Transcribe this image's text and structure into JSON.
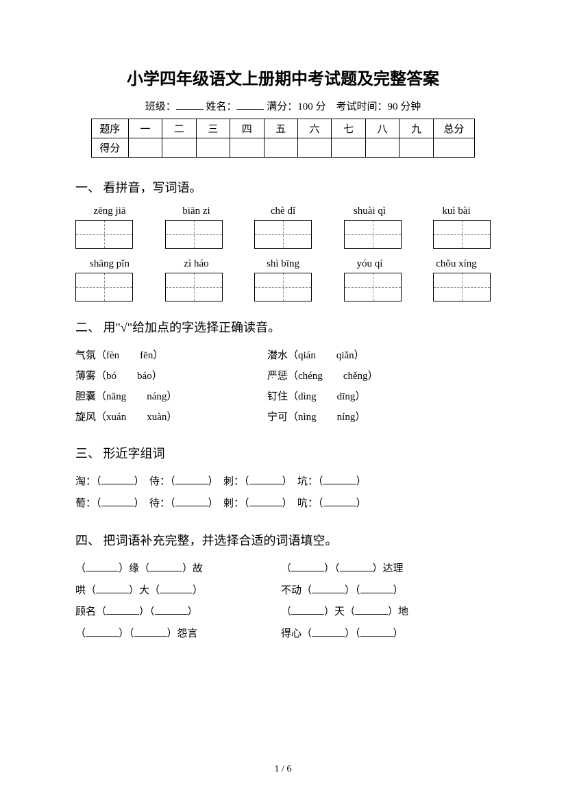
{
  "title": "小学四年级语文上册期中考试题及完整答案",
  "meta": {
    "class_label": "班级：",
    "name_label": "姓名：",
    "full_score_label": "满分：",
    "full_score_value": "100 分",
    "time_label": "考试时间：",
    "time_value": "90 分钟"
  },
  "score_table": {
    "row1_label": "题序",
    "row2_label": "得分",
    "cols": [
      "一",
      "二",
      "三",
      "四",
      "五",
      "六",
      "七",
      "八",
      "九"
    ],
    "total": "总分"
  },
  "section1": {
    "heading": "一、 看拼音，写词语。",
    "row1": [
      "zēng jiā",
      "biān zi",
      "chè dǐ",
      "shuài qì",
      "kuì bài"
    ],
    "row2": [
      "shāng pǐn",
      "zì háo",
      "shì bīng",
      "yóu qí",
      "chǒu xíng"
    ]
  },
  "section2": {
    "heading": "二、 用\"√\"给加点的字选择正确读音。",
    "rows": [
      {
        "l_word": "气氛",
        "l_opts": "（fèn　　fēn）",
        "r_word": "潜水",
        "r_opts": "（qián　　qiǎn）"
      },
      {
        "l_word": "薄雾",
        "l_opts": "（bó　　báo）",
        "r_word": "严惩",
        "r_opts": "（chéng　　chěng）"
      },
      {
        "l_word": "胆囊",
        "l_opts": "（nāng　　náng）",
        "r_word": "钉住",
        "r_opts": "（dìng　　dīng）"
      },
      {
        "l_word": "旋风",
        "l_opts": "（xuán　　xuàn）",
        "r_word": "宁可",
        "r_opts": "（nìng　　níng）"
      }
    ]
  },
  "section3": {
    "heading": "三、 形近字组词",
    "lines": [
      [
        "淘：",
        "侍：",
        "刺：",
        "坑："
      ],
      [
        "萄：",
        "待：",
        "剌：",
        "吭："
      ]
    ]
  },
  "section4": {
    "heading": "四、 把词语补充完整，并选择合适的词语填空。",
    "rows": [
      {
        "l_pre": "（",
        "l_mid": "）缘（",
        "l_suf": "）故",
        "r_pre": "（",
        "r_mid": "）（",
        "r_suf": "）达理"
      },
      {
        "l_pre": "哄（",
        "l_mid": "）大（",
        "l_suf": "）",
        "r_pre": "不动（",
        "r_mid": "）（",
        "r_suf": "）"
      },
      {
        "l_pre": "顾名（",
        "l_mid": "）（",
        "l_suf": "）",
        "r_pre": "（",
        "r_mid": "）天（",
        "r_suf": "）地"
      },
      {
        "l_pre": "（",
        "l_mid": "）（",
        "l_suf": "）怨言",
        "r_pre": "得心（",
        "r_mid": "）（",
        "r_suf": "）"
      }
    ]
  },
  "footer": "1 / 6"
}
